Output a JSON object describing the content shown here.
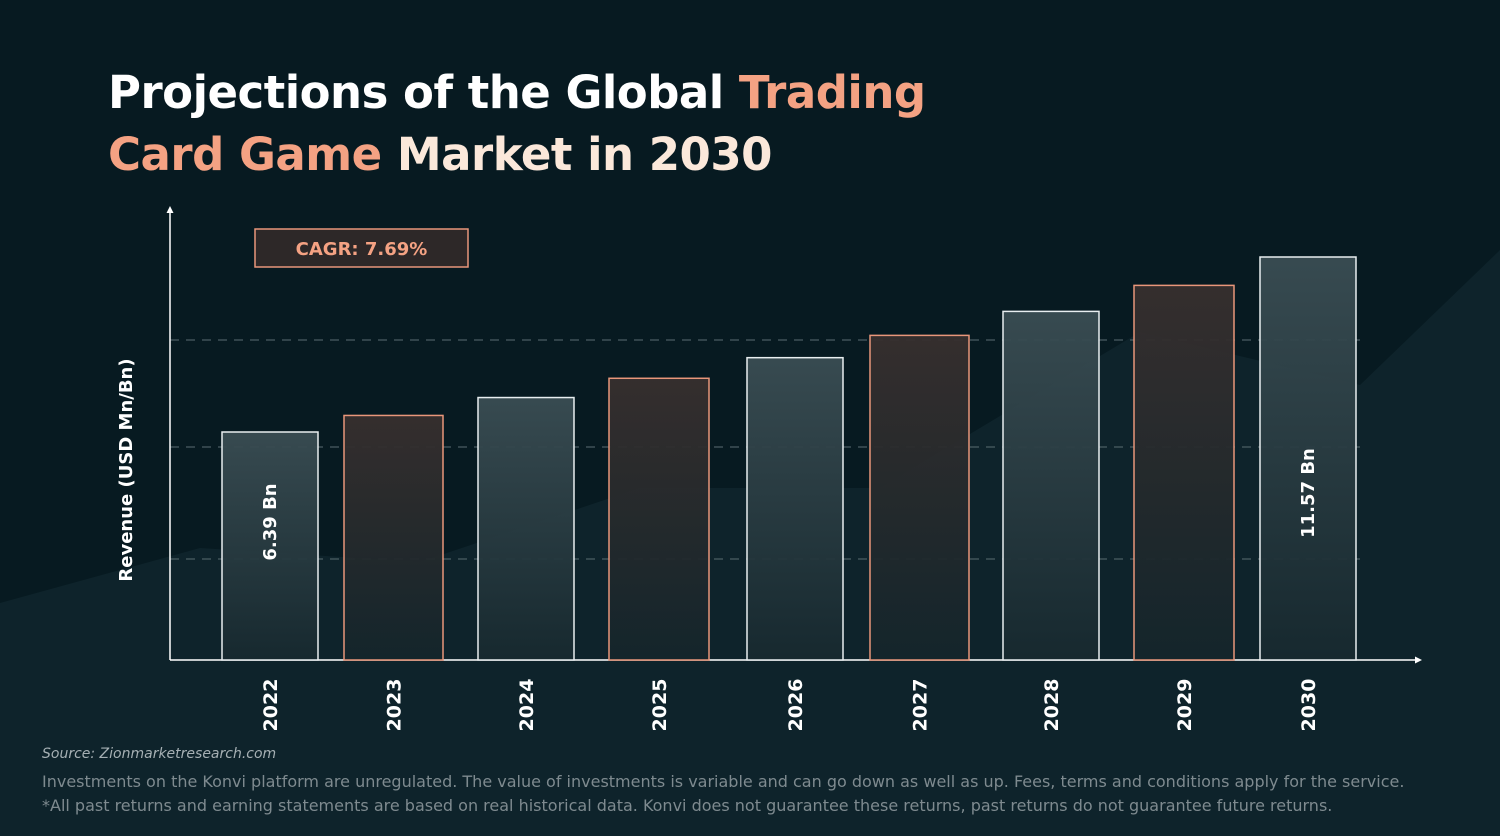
{
  "title": {
    "part1": "Projections of the Global ",
    "highlight1": "Trading",
    "highlight2": "Card Game",
    "part2": " Market in 2030"
  },
  "colors": {
    "background": "#071a21",
    "accent": "#f4a283",
    "bar_light_stroke": "#e8eef0",
    "bar_accent_stroke": "#e8967a"
  },
  "chart_data": {
    "type": "bar",
    "categories": [
      "2022",
      "2023",
      "2024",
      "2025",
      "2026",
      "2027",
      "2028",
      "2029",
      "2030"
    ],
    "values": [
      6.39,
      6.88,
      7.41,
      7.98,
      8.59,
      9.25,
      9.96,
      10.73,
      11.57
    ],
    "data_labels": {
      "2022": "6.39 Bn",
      "2030": "11.57 Bn"
    },
    "ylabel": "Revenue (USD Mn/Bn)",
    "xlabel": "",
    "annotation": "CAGR: 7.69%",
    "grid": "dashed horizontal",
    "bar_styles": [
      "light",
      "accent",
      "light",
      "accent",
      "light",
      "accent",
      "light",
      "accent",
      "light"
    ]
  },
  "footer": {
    "source": "Source: Zionmarketresearch.com",
    "disclaimer_line1": "Investments on the Konvi platform are unregulated. The value of investments is variable and can go down as well as up. Fees, terms and conditions apply for the service.",
    "disclaimer_line2": "*All past returns and earning statements are based on real historical data. Konvi does not guarantee these returns, past returns do not guarantee future returns."
  }
}
